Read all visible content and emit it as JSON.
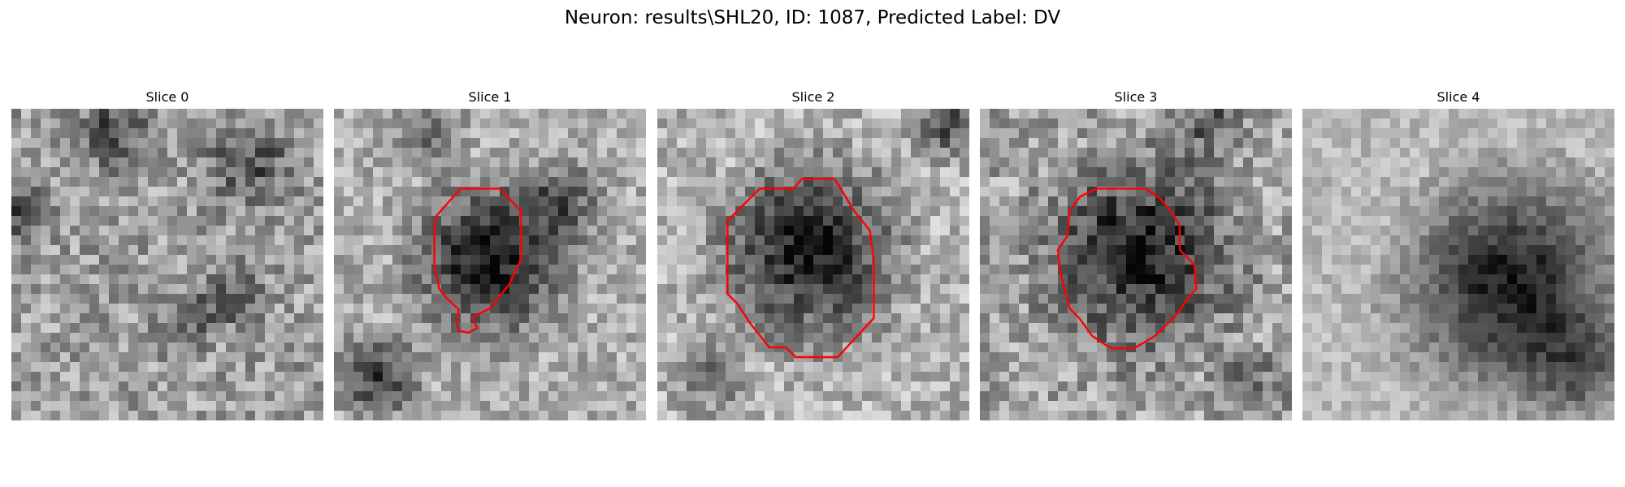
{
  "figure": {
    "title": "Neuron: results\\SHL20, ID: 1087, Predicted Label: DV",
    "contour_color": "#ff0000"
  },
  "slices": [
    {
      "title": "Slice 0",
      "has_contour": false
    },
    {
      "title": "Slice 1",
      "has_contour": true
    },
    {
      "title": "Slice 2",
      "has_contour": true
    },
    {
      "title": "Slice 3",
      "has_contour": true
    },
    {
      "title": "Slice 4",
      "has_contour": false
    }
  ]
}
